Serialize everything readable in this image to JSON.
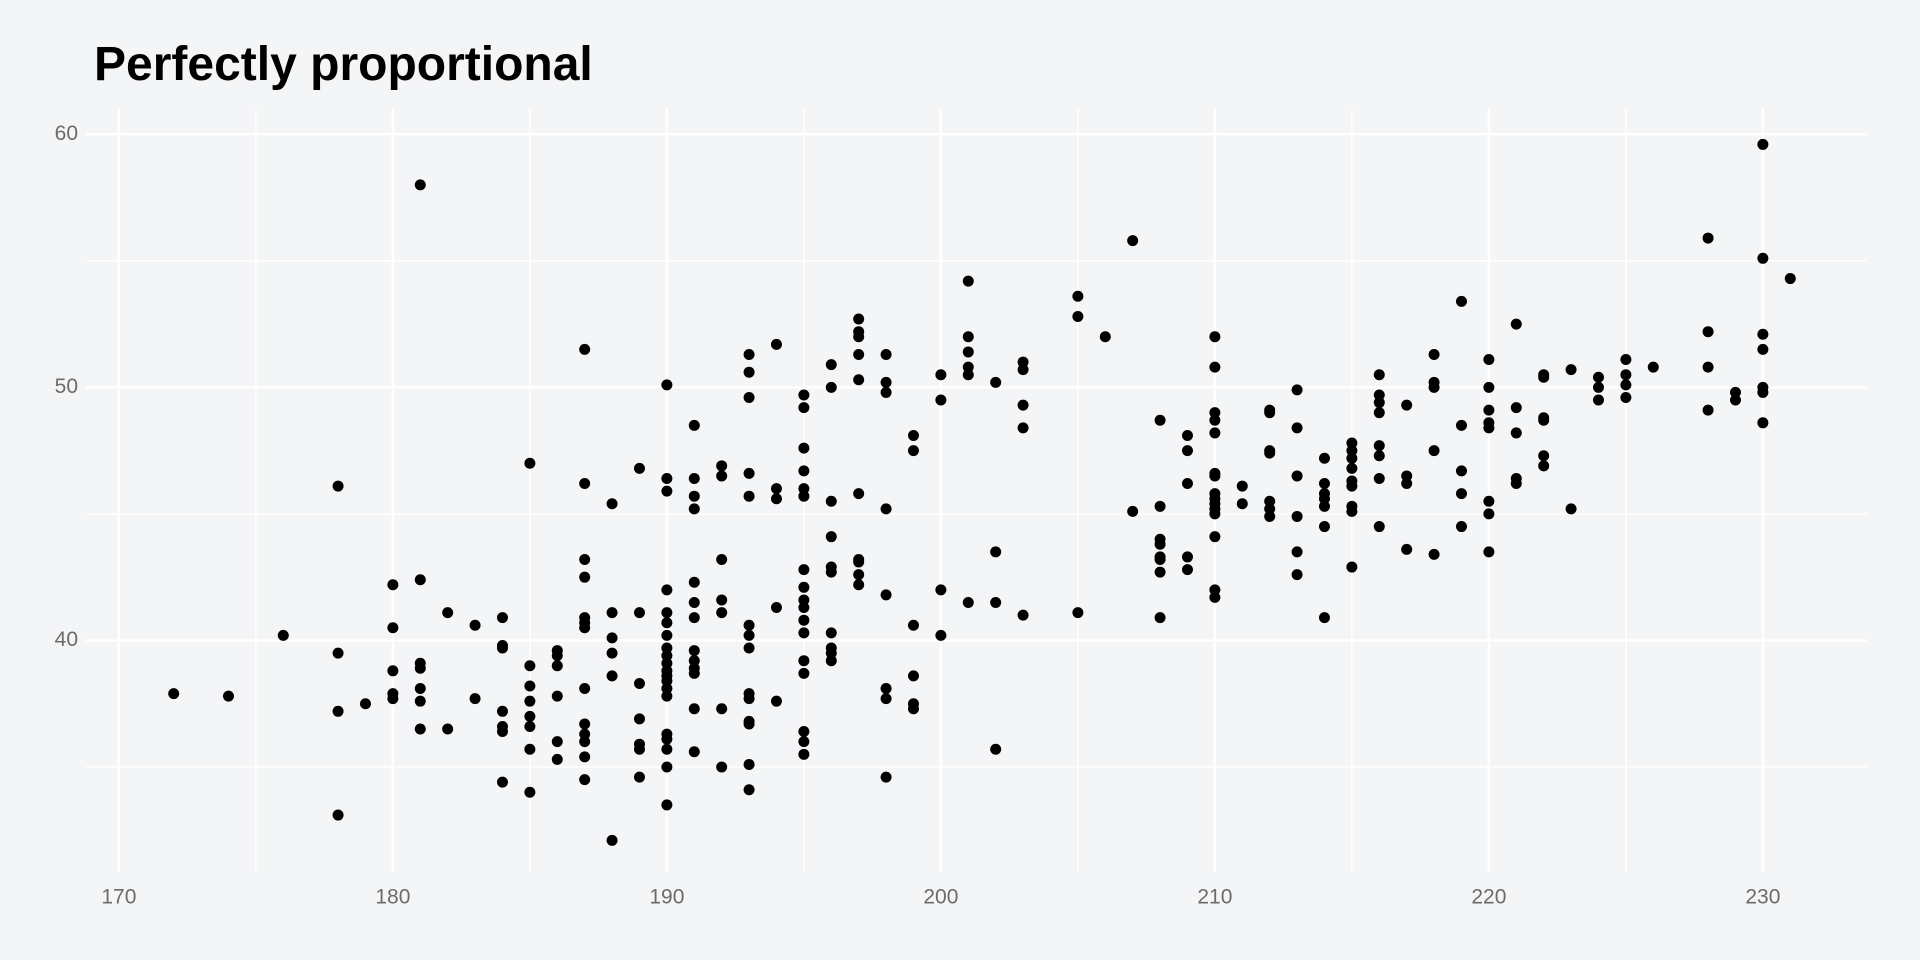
{
  "chart_data": {
    "type": "scatter",
    "title": "Perfectly proportional",
    "color": "#000000",
    "grid": true,
    "xlim": [
      168.8,
      233.8
    ],
    "ylim": [
      30.85,
      61
    ],
    "xticks": [
      170,
      180,
      190,
      200,
      210,
      220,
      230
    ],
    "yticks": [
      40,
      50,
      60
    ],
    "x_minor_ticks": [
      175,
      185,
      195,
      205,
      215,
      225
    ],
    "y_minor_ticks": [
      35,
      45,
      55
    ],
    "x": [
      172,
      174,
      176,
      178,
      178,
      178,
      178,
      179,
      180,
      180,
      180,
      180,
      180,
      181,
      181,
      181,
      181,
      181,
      181,
      181,
      182,
      182,
      183,
      183,
      184,
      184,
      184,
      184,
      184,
      184,
      184,
      185,
      185,
      185,
      185,
      185,
      185,
      185,
      185,
      186,
      186,
      186,
      186,
      186,
      186,
      187,
      187,
      187,
      187,
      187,
      187,
      187,
      187,
      187,
      187,
      187,
      187,
      187,
      188,
      188,
      188,
      188,
      188,
      188,
      189,
      189,
      189,
      189,
      189,
      189,
      189,
      190,
      190,
      190,
      190,
      190,
      190,
      190,
      190,
      190,
      190,
      190,
      190,
      190,
      190,
      190,
      190,
      190,
      190,
      190,
      190,
      191,
      191,
      191,
      191,
      191,
      191,
      191,
      191,
      191,
      191,
      191,
      191,
      191,
      192,
      192,
      192,
      192,
      192,
      192,
      192,
      193,
      193,
      193,
      193,
      193,
      193,
      193,
      193,
      193,
      193,
      193,
      193,
      193,
      193,
      194,
      194,
      194,
      194,
      194,
      195,
      195,
      195,
      195,
      195,
      195,
      195,
      195,
      195,
      195,
      195,
      195,
      195,
      195,
      195,
      195,
      195,
      196,
      196,
      196,
      196,
      196,
      196,
      196,
      196,
      196,
      196,
      197,
      197,
      197,
      197,
      197,
      197,
      197,
      197,
      197,
      197,
      198,
      198,
      198,
      198,
      198,
      198,
      198,
      198,
      199,
      199,
      199,
      199,
      199,
      199,
      200,
      200,
      200,
      200,
      201,
      201,
      201,
      201,
      201,
      201,
      202,
      202,
      202,
      202,
      203,
      203,
      203,
      203,
      203,
      205,
      205,
      205,
      206,
      207,
      207,
      208,
      208,
      208,
      208,
      208,
      208,
      208,
      208,
      209,
      209,
      209,
      209,
      209,
      210,
      210,
      210,
      210,
      210,
      210,
      210,
      210,
      210,
      210,
      210,
      210,
      210,
      210,
      210,
      211,
      211,
      212,
      212,
      212,
      212,
      212,
      212,
      212,
      213,
      213,
      213,
      213,
      213,
      213,
      214,
      214,
      214,
      214,
      214,
      214,
      214,
      215,
      215,
      215,
      215,
      215,
      215,
      215,
      215,
      215,
      216,
      216,
      216,
      216,
      216,
      216,
      216,
      216,
      217,
      217,
      217,
      217,
      218,
      218,
      218,
      218,
      218,
      219,
      219,
      219,
      219,
      219,
      220,
      220,
      220,
      220,
      220,
      220,
      220,
      220,
      221,
      221,
      221,
      221,
      221,
      222,
      222,
      222,
      222,
      222,
      222,
      223,
      223,
      224,
      224,
      224,
      225,
      225,
      225,
      225,
      226,
      228,
      228,
      228,
      228,
      229,
      229,
      230,
      230,
      230,
      230,
      230,
      230,
      230,
      231
    ],
    "values": [
      37.9,
      37.8,
      40.2,
      46.1,
      39.5,
      37.2,
      33.1,
      37.5,
      42.2,
      40.5,
      38.8,
      37.9,
      37.7,
      58.0,
      42.4,
      39.1,
      38.9,
      38.1,
      37.6,
      36.5,
      41.1,
      36.5,
      40.6,
      37.7,
      40.9,
      39.8,
      39.7,
      37.2,
      36.6,
      36.4,
      34.4,
      47.0,
      39.0,
      38.2,
      37.6,
      37.0,
      36.6,
      35.7,
      34.0,
      39.6,
      39.4,
      39.0,
      37.8,
      36.0,
      35.3,
      51.5,
      46.2,
      43.2,
      42.5,
      40.9,
      40.7,
      40.5,
      38.1,
      36.7,
      36.3,
      36.0,
      35.4,
      34.5,
      45.4,
      41.1,
      40.1,
      39.5,
      38.6,
      32.1,
      46.8,
      41.1,
      38.3,
      36.9,
      35.9,
      35.7,
      34.6,
      50.1,
      46.4,
      45.9,
      42.0,
      41.1,
      40.7,
      40.2,
      39.7,
      39.4,
      39.1,
      38.8,
      38.6,
      38.4,
      38.1,
      37.8,
      36.3,
      36.1,
      35.7,
      35.0,
      33.5,
      48.5,
      46.4,
      45.7,
      45.2,
      42.3,
      41.5,
      40.9,
      39.6,
      39.2,
      38.9,
      38.7,
      37.3,
      35.6,
      46.9,
      46.5,
      43.2,
      41.6,
      41.1,
      37.3,
      35.0,
      51.3,
      50.6,
      49.6,
      46.6,
      45.7,
      40.6,
      40.2,
      39.7,
      37.9,
      37.7,
      36.8,
      36.7,
      35.1,
      34.1,
      51.7,
      46.0,
      45.6,
      41.3,
      37.6,
      49.7,
      49.2,
      47.6,
      46.7,
      46.0,
      45.7,
      42.8,
      42.1,
      41.6,
      41.3,
      40.8,
      40.3,
      39.2,
      38.7,
      36.4,
      36.0,
      35.5,
      50.9,
      50.0,
      45.5,
      44.1,
      42.9,
      42.7,
      40.3,
      39.7,
      39.5,
      39.2,
      52.7,
      52.2,
      52.0,
      51.3,
      50.3,
      45.8,
      43.2,
      43.1,
      42.6,
      42.2,
      51.3,
      50.2,
      49.8,
      45.2,
      41.8,
      38.1,
      37.7,
      34.6,
      48.1,
      47.5,
      40.6,
      38.6,
      37.5,
      37.3,
      50.5,
      49.5,
      42.0,
      40.2,
      54.2,
      52.0,
      51.4,
      50.8,
      50.5,
      41.5,
      50.2,
      43.5,
      41.5,
      35.7,
      51.0,
      50.7,
      49.3,
      48.4,
      41.0,
      53.6,
      52.8,
      41.1,
      52.0,
      55.8,
      45.1,
      48.7,
      45.3,
      44.0,
      43.8,
      43.3,
      43.2,
      42.7,
      40.9,
      48.1,
      47.5,
      46.2,
      43.3,
      42.8,
      52.0,
      50.8,
      49.0,
      48.7,
      48.2,
      46.6,
      46.5,
      45.8,
      45.6,
      45.4,
      45.2,
      45.0,
      44.1,
      42.0,
      41.7,
      46.1,
      45.4,
      49.1,
      49.0,
      47.5,
      47.4,
      45.5,
      45.2,
      44.9,
      49.9,
      48.4,
      46.5,
      44.9,
      43.5,
      42.6,
      47.2,
      46.2,
      45.8,
      45.6,
      45.3,
      44.5,
      40.9,
      47.8,
      47.5,
      47.2,
      46.8,
      46.3,
      46.1,
      45.3,
      45.1,
      42.9,
      50.5,
      49.7,
      49.4,
      49.0,
      47.7,
      47.3,
      46.4,
      44.5,
      49.3,
      46.5,
      46.2,
      43.6,
      51.3,
      50.2,
      50.0,
      47.5,
      43.4,
      53.4,
      48.5,
      46.7,
      45.8,
      44.5,
      51.1,
      50.0,
      49.1,
      48.6,
      48.4,
      45.5,
      45.0,
      43.5,
      52.5,
      49.2,
      48.2,
      46.4,
      46.2,
      50.5,
      50.4,
      48.8,
      48.7,
      47.3,
      46.9,
      50.7,
      45.2,
      50.4,
      50.0,
      49.5,
      51.1,
      50.5,
      50.1,
      49.6,
      50.8,
      55.9,
      52.2,
      50.8,
      49.1,
      49.8,
      49.5,
      59.6,
      55.1,
      52.1,
      51.5,
      50.0,
      49.8,
      48.6,
      54.3
    ]
  }
}
